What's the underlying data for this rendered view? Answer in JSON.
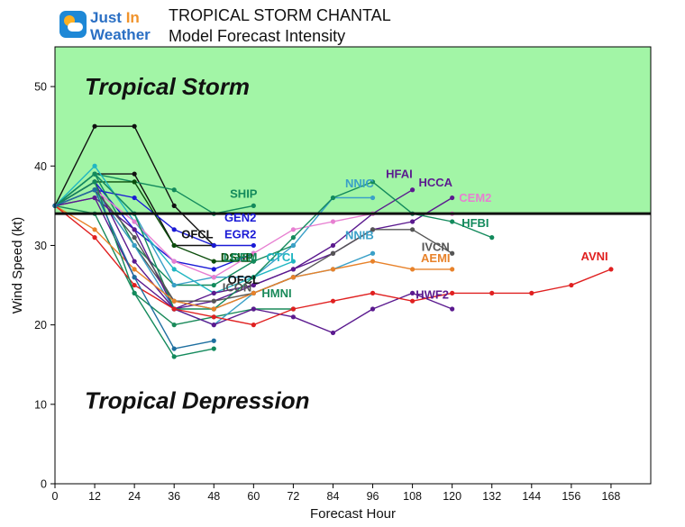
{
  "header": {
    "logo_line1_a": "Just ",
    "logo_line1_b": "In",
    "logo_line2": "Weather",
    "logo_icon": "weather-sun-cloud-icon",
    "title": "TROPICAL STORM CHANTAL",
    "subtitle": "Model Forecast Intensity"
  },
  "chart_data": {
    "type": "line",
    "title": "TROPICAL STORM CHANTAL",
    "subtitle": "Model Forecast Intensity",
    "xlabel": "Forecast Hour",
    "ylabel": "Wind Speed (kt)",
    "xlim": [
      0,
      180
    ],
    "ylim": [
      0,
      55
    ],
    "xticks": [
      0,
      12,
      24,
      36,
      48,
      60,
      72,
      84,
      96,
      108,
      120,
      132,
      144,
      156,
      168
    ],
    "yticks": [
      0,
      10,
      20,
      30,
      40,
      50
    ],
    "grid": false,
    "legend": "none (series labeled directly on plot)",
    "threshold": {
      "value": 34,
      "color": "#111111"
    },
    "zones": [
      {
        "name": "Tropical Storm",
        "from": 34,
        "to": 55,
        "color": "#a2f5a6"
      },
      {
        "name": "Tropical Depression",
        "from": 0,
        "to": 34,
        "color": "#ffffff"
      }
    ],
    "zone_labels": {
      "storm": {
        "text": "Tropical Storm",
        "x": 9,
        "y": 50
      },
      "depression": {
        "text": "Tropical Depression",
        "x": 9,
        "y": 10.5
      }
    },
    "series": [
      {
        "name": "OFCL",
        "color": "#111111",
        "label_x": 43,
        "label_y": 30.9,
        "x": [
          0,
          12,
          24,
          36,
          48
        ],
        "y": [
          35,
          45,
          45,
          35,
          30
        ]
      },
      {
        "name": "OFCL",
        "color": "#111111",
        "label_x": 57,
        "label_y": 25.2,
        "x": [
          0,
          12,
          24,
          36,
          48
        ],
        "y": [
          35,
          39,
          39,
          30,
          30
        ]
      },
      {
        "name": "SHIP",
        "color": "#138a5c",
        "label_x": 57,
        "label_y": 36,
        "x": [
          0,
          12,
          24,
          36,
          48,
          60
        ],
        "y": [
          35,
          39,
          38,
          37,
          34,
          35
        ]
      },
      {
        "name": "GEN2",
        "color": "#1a1ad6",
        "label_x": 56,
        "label_y": 33,
        "x": [
          0,
          12,
          24,
          36,
          48,
          60
        ],
        "y": [
          35,
          37,
          36,
          32,
          30,
          30
        ]
      },
      {
        "name": "EGR2",
        "color": "#1a1ad6",
        "label_x": 56,
        "label_y": 30.9,
        "x": [
          0,
          12,
          24,
          36,
          48,
          60
        ],
        "y": [
          35,
          38,
          32,
          28,
          27,
          29
        ]
      },
      {
        "name": "DSHP",
        "color": "#0b4d0b",
        "label_x": 55,
        "label_y": 28,
        "x": [
          0,
          12,
          24,
          36,
          48,
          60
        ],
        "y": [
          35,
          38,
          38,
          30,
          28,
          28
        ]
      },
      {
        "name": "LGEM",
        "color": "#138a5c",
        "label_x": 56,
        "label_y": 28,
        "x": [
          0,
          12,
          24,
          36,
          48,
          60,
          72
        ],
        "y": [
          35,
          39,
          30,
          25,
          25,
          28,
          30
        ]
      },
      {
        "name": "CTCI",
        "color": "#21b6c2",
        "label_x": 68,
        "label_y": 28,
        "x": [
          0,
          12,
          24,
          36,
          48,
          60,
          72
        ],
        "y": [
          35,
          40,
          33,
          27,
          24,
          26,
          28
        ]
      },
      {
        "name": "ICON",
        "color": "#555555",
        "label_x": 55,
        "label_y": 24.2,
        "x": [
          0,
          12,
          24,
          36,
          48,
          60,
          72
        ],
        "y": [
          35,
          37,
          30,
          23,
          22,
          24,
          26
        ]
      },
      {
        "name": "HMNI",
        "color": "#1a8a5a",
        "label_x": 67,
        "label_y": 23.5,
        "x": [
          0,
          12,
          24,
          36,
          48,
          60,
          72
        ],
        "y": [
          35,
          34,
          24,
          20,
          21,
          22,
          22
        ]
      },
      {
        "name": "NNIC",
        "color": "#3aa0c8",
        "label_x": 92,
        "label_y": 37.3,
        "x": [
          0,
          12,
          24,
          36,
          48,
          60,
          72,
          84,
          96
        ],
        "y": [
          35,
          39,
          34,
          25,
          26,
          26,
          30,
          36,
          36
        ]
      },
      {
        "name": "NNIB",
        "color": "#3aa0c8",
        "label_x": 92,
        "label_y": 30.8,
        "x": [
          0,
          12,
          24,
          36,
          48,
          60,
          72,
          84,
          96
        ],
        "y": [
          35,
          37,
          30,
          22,
          20,
          24,
          26,
          27,
          29
        ]
      },
      {
        "name": "HFAI",
        "color": "#5b1a8f",
        "label_x": 104,
        "label_y": 38.5,
        "x": [
          0,
          12,
          24,
          36,
          48,
          60,
          72,
          84,
          96,
          108
        ],
        "y": [
          35,
          38,
          28,
          22,
          23,
          25,
          27,
          30,
          34,
          37
        ]
      },
      {
        "name": "HCCA",
        "color": "#5b1a8f",
        "label_x": 115,
        "label_y": 37.4,
        "x": [
          0,
          12,
          24,
          36,
          48,
          60,
          72,
          84,
          96,
          108,
          120
        ],
        "y": [
          35,
          36,
          32,
          22,
          24,
          25,
          27,
          29,
          32,
          33,
          36
        ]
      },
      {
        "name": "CEM2",
        "color": "#e77fd1",
        "label_x": 127,
        "label_y": 35.5,
        "x": [
          0,
          12,
          24,
          36,
          48,
          60,
          72,
          84,
          96,
          108,
          120
        ],
        "y": [
          35,
          37,
          33,
          28,
          26,
          29,
          32,
          33,
          34,
          34,
          34
        ]
      },
      {
        "name": "HFBI",
        "color": "#138a5c",
        "label_x": 127,
        "label_y": 32.3,
        "x": [
          0,
          12,
          24,
          36,
          48,
          60,
          72,
          84,
          96,
          108,
          120,
          132
        ],
        "y": [
          35,
          39,
          34,
          22,
          22,
          26,
          31,
          36,
          38,
          34,
          33,
          31
        ]
      },
      {
        "name": "IVCN",
        "color": "#555555",
        "label_x": 115,
        "label_y": 29.3,
        "x": [
          0,
          12,
          24,
          36,
          48,
          60,
          72,
          84,
          96,
          108,
          120
        ],
        "y": [
          35,
          37,
          31,
          23,
          23,
          24,
          26,
          29,
          32,
          32,
          29
        ]
      },
      {
        "name": "AEMI",
        "color": "#e8822a",
        "label_x": 115,
        "label_y": 27.9,
        "x": [
          0,
          12,
          24,
          36,
          48,
          60,
          72,
          84,
          96,
          108,
          120
        ],
        "y": [
          35,
          32,
          27,
          23,
          22,
          24,
          26,
          27,
          28,
          27,
          27
        ]
      },
      {
        "name": "HWF2",
        "color": "#5b1a8f",
        "label_x": 114,
        "label_y": 23.3,
        "x": [
          0,
          12,
          24,
          36,
          48,
          60,
          72,
          84,
          96,
          108,
          120
        ],
        "y": [
          35,
          36,
          26,
          22,
          20,
          22,
          21,
          19,
          22,
          24,
          22
        ]
      },
      {
        "name": "AVNI",
        "color": "#e02020",
        "label_x": 163,
        "label_y": 28.1,
        "x": [
          0,
          12,
          24,
          36,
          48,
          60,
          72,
          84,
          96,
          108,
          120,
          132,
          144,
          156,
          168
        ],
        "y": [
          35,
          31,
          25,
          22,
          21,
          20,
          22,
          23,
          24,
          23,
          24,
          24,
          24,
          25,
          27
        ]
      },
      {
        "name": "",
        "color": "#138a5c",
        "x": [
          0,
          12,
          24,
          36,
          48
        ],
        "y": [
          35,
          38,
          24,
          16,
          17
        ]
      },
      {
        "name": "",
        "color": "#1e6fa0",
        "x": [
          0,
          12,
          24,
          36,
          48
        ],
        "y": [
          35,
          37,
          26,
          17,
          18
        ]
      }
    ]
  }
}
